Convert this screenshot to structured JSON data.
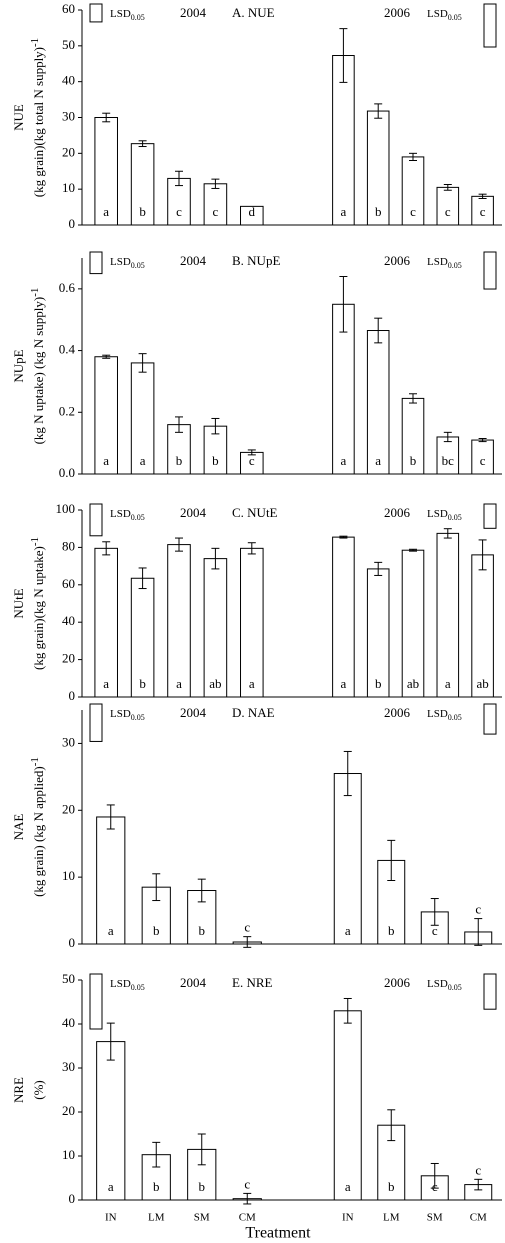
{
  "chart_data": [
    {
      "type": "bar",
      "title": "A. NUE",
      "ylabel": "NUE",
      "ylabel_unit": "(kg grain)(kg total N supply)",
      "ylabel_unit_sup": "-1",
      "lsd_label": "LSD",
      "lsd_sub": "0.05",
      "ylim": [
        0,
        60
      ],
      "yticks": [
        0,
        10,
        20,
        30,
        40,
        50,
        60
      ],
      "series": [
        {
          "name": "2004",
          "values": [
            30,
            22.7,
            13,
            11.5,
            5.2
          ],
          "errors": [
            1.2,
            0.8,
            2,
            1.3,
            0
          ],
          "letters": [
            "a",
            "b",
            "c",
            "c",
            "d"
          ],
          "lsd": 5
        },
        {
          "name": "2006",
          "values": [
            47.3,
            31.8,
            19,
            10.5,
            8
          ],
          "errors": [
            7.5,
            2,
            1,
            0.8,
            0.6
          ],
          "letters": [
            "a",
            "b",
            "c",
            "c",
            "c"
          ],
          "lsd": 12
        }
      ]
    },
    {
      "type": "bar",
      "title": "B. NUpE",
      "ylabel": "NUpE",
      "ylabel_unit": "(kg N uptake) (kg N supply)",
      "ylabel_unit_sup": "-1",
      "lsd_label": "LSD",
      "lsd_sub": "0.05",
      "ylim": [
        0,
        0.7
      ],
      "yticks": [
        {
          "value": 0,
          "label": "0.0"
        },
        0.2,
        0.4,
        0.6
      ],
      "series": [
        {
          "name": "2004",
          "values": [
            0.38,
            0.36,
            0.16,
            0.155,
            0.07
          ],
          "errors": [
            0.005,
            0.03,
            0.025,
            0.025,
            0.008
          ],
          "letters": [
            "a",
            "a",
            "b",
            "b",
            "c"
          ],
          "lsd": 0.07
        },
        {
          "name": "2006",
          "values": [
            0.55,
            0.465,
            0.245,
            0.12,
            0.11
          ],
          "errors": [
            0.09,
            0.04,
            0.015,
            0.015,
            0.005
          ],
          "letters": [
            "a",
            "a",
            "b",
            "bc",
            "c"
          ],
          "lsd": 0.12
        }
      ]
    },
    {
      "type": "bar",
      "title": "C. NUtE",
      "ylabel": "NUtE",
      "ylabel_unit": "(kg grain)(kg N uptake)",
      "ylabel_unit_sup": "-1",
      "lsd_label": "LSD",
      "lsd_sub": "0.05",
      "ylim": [
        0,
        100
      ],
      "yticks": [
        0,
        20,
        40,
        60,
        80,
        100
      ],
      "series": [
        {
          "name": "2004",
          "values": [
            79.5,
            63.5,
            81.5,
            74,
            79.5
          ],
          "errors": [
            3.5,
            5.5,
            3.5,
            5.5,
            3
          ],
          "letters": [
            "a",
            "b",
            "a",
            "ab",
            "a"
          ],
          "lsd": 17
        },
        {
          "name": "2006",
          "values": [
            85.5,
            68.5,
            78.5,
            87.5,
            76
          ],
          "errors": [
            0.5,
            3.5,
            0.5,
            2.5,
            8
          ],
          "letters": [
            "a",
            "b",
            "ab",
            "a",
            "ab"
          ],
          "lsd": 13
        }
      ]
    },
    {
      "type": "bar",
      "title": "D. NAE",
      "ylabel": "NAE",
      "ylabel_unit": "(kg grain) (kg N applied)",
      "ylabel_unit_sup": "-1",
      "lsd_label": "LSD",
      "lsd_sub": "0.05",
      "ylim": [
        0,
        35
      ],
      "yticks": [
        0,
        10,
        20,
        30
      ],
      "series": [
        {
          "name": "2004",
          "values": [
            19,
            8.5,
            8,
            0.3
          ],
          "errors": [
            1.8,
            2,
            1.7,
            0.8
          ],
          "letters": [
            "a",
            "b",
            "b",
            "c"
          ],
          "lsd": 5.6
        },
        {
          "name": "2006",
          "values": [
            25.5,
            12.5,
            4.8,
            1.8
          ],
          "errors": [
            3.3,
            3,
            2,
            2
          ],
          "letters": [
            "a",
            "b",
            "c",
            "c"
          ],
          "lsd": 4.5
        }
      ]
    },
    {
      "type": "bar",
      "title": "E. NRE",
      "ylabel": "NRE",
      "ylabel_unit": "(%)",
      "lsd_label": "LSD",
      "lsd_sub": "0.05",
      "ylim": [
        0,
        50
      ],
      "yticks": [
        0,
        10,
        20,
        30,
        40,
        50
      ],
      "categories": [
        "IN",
        "LM",
        "SM",
        "CM"
      ],
      "xlabel": "Treatment",
      "series": [
        {
          "name": "2004",
          "values": [
            36,
            10.3,
            11.5,
            0.3
          ],
          "errors": [
            4.2,
            2.8,
            3.5,
            1.2
          ],
          "letters": [
            "a",
            "b",
            "b",
            "c"
          ],
          "lsd": 12.5
        },
        {
          "name": "2006",
          "values": [
            43,
            17,
            5.5,
            3.5
          ],
          "errors": [
            2.8,
            3.5,
            2.8,
            1.2
          ],
          "letters": [
            "a",
            "b",
            "c",
            "c"
          ],
          "lsd": 8
        }
      ]
    }
  ]
}
